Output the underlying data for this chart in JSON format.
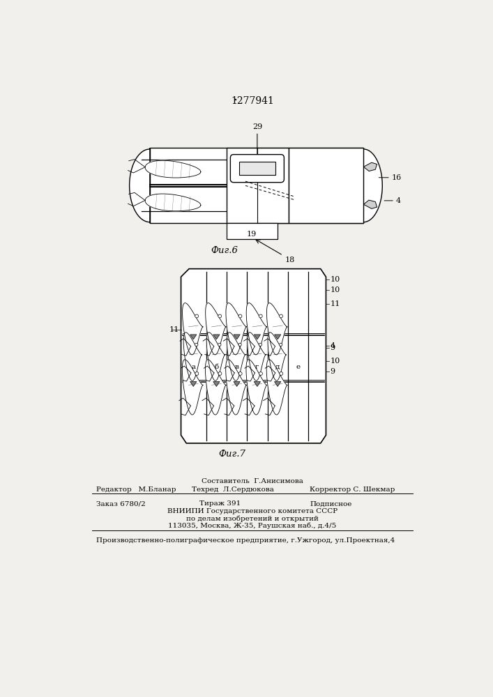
{
  "bg_color": "#f2f0ec",
  "patent_number": "1277941",
  "fig6_label": "Фиг.6",
  "fig7_label": "Фиг.7",
  "составитель": "Составитель  Г.Анисимова",
  "редактор": "Редактор   М.Бланар",
  "техред": "Техред  Л.Сердюкова",
  "корректор": "Корректор С. Шекмар",
  "заказ": "Заказ 6780/2",
  "тираж": "Тираж 391",
  "подписное": "Подписное",
  "вниипи": "ВНИИПИ Государственного комитета СССР",
  "делам": "по делам изобретений и открытий",
  "адрес": "113035, Москва, Ж-35, Раушская наб., д.4/5",
  "производство": "Производственно-полиграфическое предприятие, г.Ужгород, ул.Проектная,4"
}
